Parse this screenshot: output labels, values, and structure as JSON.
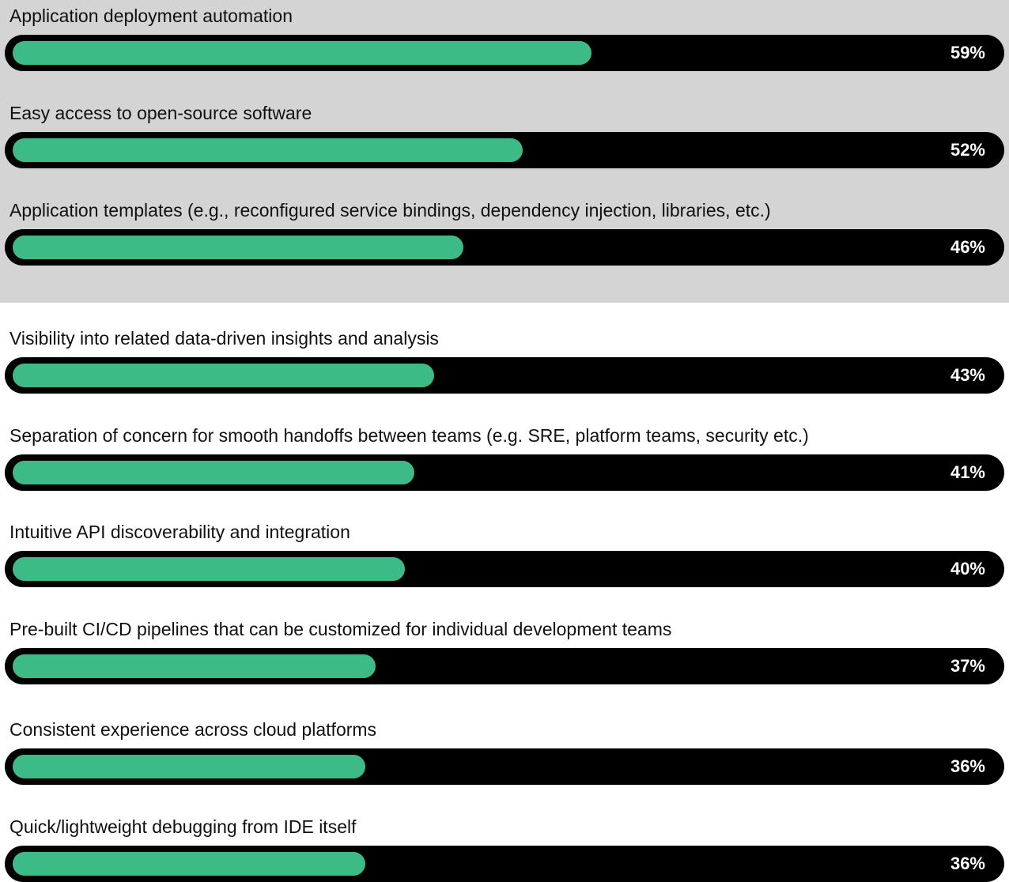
{
  "chart_data": {
    "type": "bar",
    "orientation": "horizontal",
    "categories": [
      "Application deployment automation",
      "Easy access to open-source software",
      "Application templates (e.g., reconfigured service bindings, dependency injection, libraries, etc.)",
      "Visibility into related data-driven insights and analysis",
      "Separation of concern for smooth handoffs between teams (e.g. SRE, platform teams, security etc.)",
      "Intuitive API discoverability and integration",
      "Pre-built CI/CD pipelines that can be customized for individual development teams",
      "Consistent experience across cloud platforms",
      "Quick/lightweight debugging from IDE itself"
    ],
    "values": [
      59,
      52,
      46,
      43,
      41,
      40,
      37,
      36,
      36
    ],
    "value_labels": [
      "59%",
      "52%",
      "46%",
      "43%",
      "41%",
      "40%",
      "37%",
      "36%",
      "36%"
    ],
    "value_unit": "%",
    "xlim": [
      0,
      100
    ],
    "highlighted_count": 3,
    "colors": {
      "fill": "#3dbb86",
      "track": "#000000",
      "highlight_band": "#d4d4d4",
      "value_text": "#ffffff"
    }
  }
}
